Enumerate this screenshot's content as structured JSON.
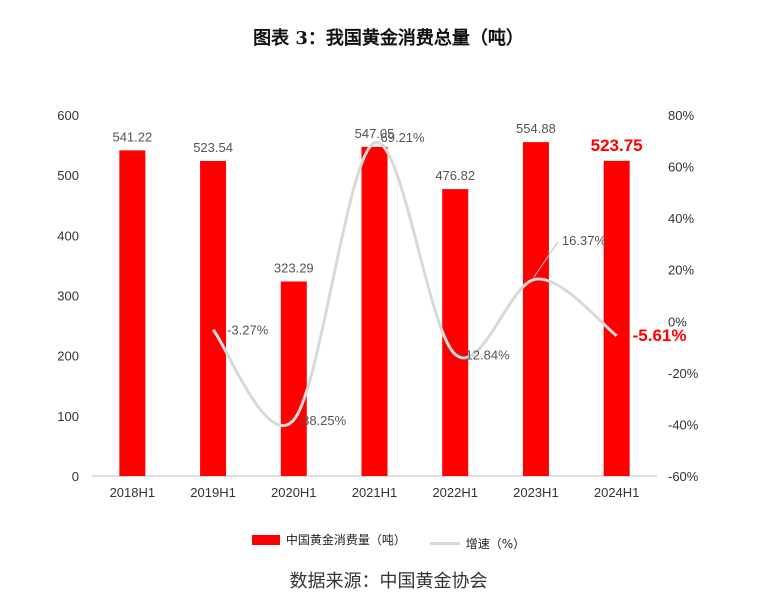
{
  "title": "图表 3：我国黄金消费总量（吨）",
  "source": "数据来源：中国黄金协会",
  "colors": {
    "bar": "#ff0000",
    "line": "#d9d9d9",
    "highlight": "#ff0000"
  },
  "legend": {
    "bar_label": "中国黄金消费量（吨）",
    "line_label": "增速（%）"
  },
  "chart_data": {
    "type": "bar",
    "categories": [
      "2018H1",
      "2019H1",
      "2020H1",
      "2021H1",
      "2022H1",
      "2023H1",
      "2024H1"
    ],
    "series": [
      {
        "name": "中国黄金消费量（吨）",
        "type": "bar",
        "axis": "left",
        "values": [
          541.22,
          523.54,
          323.29,
          547.05,
          476.82,
          554.88,
          523.75
        ],
        "labels": [
          "541.22",
          "523.54",
          "323.29",
          "547.05",
          "476.82",
          "554.88",
          "523.75"
        ]
      },
      {
        "name": "增速（%）",
        "type": "line",
        "axis": "right",
        "values": [
          null,
          -3.27,
          -38.25,
          69.21,
          -12.84,
          16.37,
          -5.61
        ],
        "labels": [
          "",
          "-3.27%",
          "-38.25%",
          "69.21%",
          "-12.84%",
          "16.37%",
          "-5.61%"
        ]
      }
    ],
    "highlight_index": 6,
    "y_left": {
      "min": 0,
      "max": 600,
      "ticks": [
        "0",
        "100",
        "200",
        "300",
        "400",
        "500",
        "600"
      ]
    },
    "y_right": {
      "min": -60,
      "max": 80,
      "ticks": [
        "-60%",
        "-40%",
        "-20%",
        "0%",
        "20%",
        "40%",
        "60%",
        "80%"
      ]
    },
    "grid": false,
    "legend_position": "bottom"
  }
}
